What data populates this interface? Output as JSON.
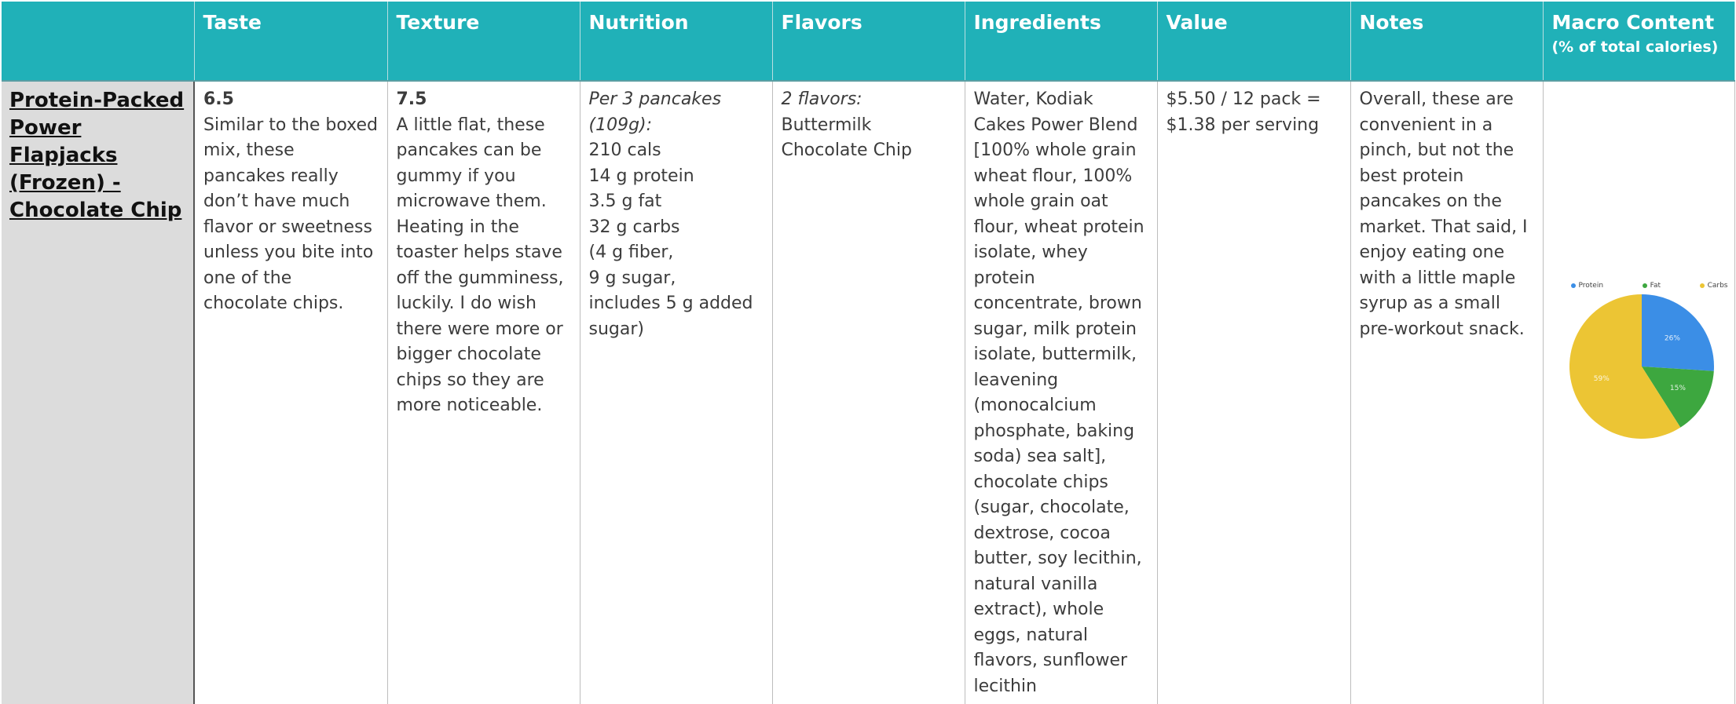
{
  "headers": {
    "blank": "",
    "taste": "Taste",
    "texture": "Texture",
    "nutrition": "Nutrition",
    "flavors": "Flavors",
    "ingredients": "Ingredients",
    "value": "Value",
    "notes": "Notes",
    "macro": "Macro Content",
    "macro_sub": "(% of total calories)"
  },
  "product": {
    "name_lines": [
      "Protein-Packed",
      "Power Flapjacks",
      "(Frozen) -",
      "Chocolate Chip"
    ],
    "taste_score": "6.5",
    "taste_text": "Similar to the boxed mix, these pancakes really don’t have much flavor or sweetness unless you bite into one of the chocolate chips.",
    "texture_score": "7.5",
    "texture_text": "A little flat, these pancakes can be gummy if you microwave them. Heating in the toaster helps stave off the gumminess, luckily. I do wish there were more or bigger chocolate chips so they are more noticeable.",
    "nutrition_serving": "Per 3 pancakes (109g):",
    "nutrition_lines": [
      "210 cals",
      "14 g protein",
      "3.5 g fat",
      "32 g carbs",
      "(4 g fiber,",
      "9 g sugar,",
      "includes 5 g added sugar)"
    ],
    "flavors_heading": "2 flavors:",
    "flavors_list": [
      "Buttermilk",
      "Chocolate Chip"
    ],
    "ingredients": "Water, Kodiak Cakes Power Blend [100% whole grain wheat flour, 100% whole grain oat flour, wheat protein isolate, whey protein concentrate, brown sugar, milk protein isolate, buttermilk, leavening (monocalcium phosphate, baking soda) sea salt], chocolate chips (sugar, chocolate, dextrose, cocoa butter, soy lecithin, natural vanilla extract), whole eggs, natural flavors, sunflower lecithin",
    "value": "$5.50 / 12 pack = $1.38 per serving",
    "notes": "Overall, these are convenient in a pinch, but not the best protein pancakes on the market.  That said, I enjoy eating one with a little maple syrup as a small pre-workout snack."
  },
  "chart_data": {
    "type": "pie",
    "title": "",
    "legend_position": "top",
    "slices": [
      {
        "name": "Protein",
        "value": 26,
        "label": "26%",
        "color": "#3b8ee6"
      },
      {
        "name": "Fat",
        "value": 15,
        "label": "15%",
        "color": "#3da73f"
      },
      {
        "name": "Carbs",
        "value": 59,
        "label": "59%",
        "color": "#ecc534"
      }
    ]
  }
}
